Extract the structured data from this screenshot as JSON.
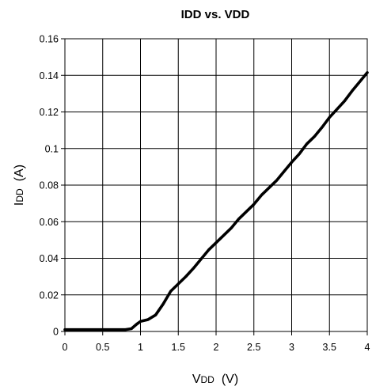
{
  "chart_data": {
    "type": "line",
    "title": "IDD vs. VDD",
    "xlabel": {
      "main": "V",
      "sub": "DD",
      "unit": "(V)"
    },
    "ylabel": {
      "main": "I",
      "sub": "DD",
      "unit": "(A)"
    },
    "xlim": [
      0,
      4
    ],
    "ylim": [
      0,
      0.16
    ],
    "x_ticks": [
      0,
      0.5,
      1,
      1.5,
      2,
      2.5,
      3,
      3.5,
      4
    ],
    "x_tick_labels": [
      "0",
      "0.5",
      "1",
      "1.5",
      "2",
      "2.5",
      "3",
      "3.5",
      "4"
    ],
    "y_ticks": [
      0,
      0.02,
      0.04,
      0.06,
      0.08,
      0.1,
      0.12,
      0.14,
      0.16
    ],
    "y_tick_labels": [
      "0",
      "0.02",
      "0.04",
      "0.06",
      "0.08",
      "0.1",
      "0.12",
      "0.14",
      "0.16"
    ],
    "grid": true,
    "legend": "none",
    "series": [
      {
        "color": "#000000",
        "x": [
          0,
          0.5,
          0.8,
          0.88,
          0.95,
          1.0,
          1.1,
          1.2,
          1.3,
          1.4,
          1.5,
          1.6,
          1.7,
          1.8,
          1.9,
          2.0,
          2.1,
          2.2,
          2.3,
          2.4,
          2.5,
          2.6,
          2.7,
          2.8,
          2.9,
          3.0,
          3.1,
          3.2,
          3.3,
          3.4,
          3.5,
          3.6,
          3.7,
          3.8,
          3.9,
          4.0
        ],
        "y": [
          0.001,
          0.001,
          0.001,
          0.0015,
          0.004,
          0.0055,
          0.0065,
          0.009,
          0.015,
          0.022,
          0.026,
          0.03,
          0.0345,
          0.0395,
          0.0445,
          0.0485,
          0.0525,
          0.0565,
          0.0615,
          0.0655,
          0.0695,
          0.0745,
          0.0785,
          0.0825,
          0.0875,
          0.0925,
          0.097,
          0.1025,
          0.1065,
          0.1115,
          0.117,
          0.1215,
          0.126,
          0.1315,
          0.1365,
          0.1415
        ]
      }
    ]
  }
}
